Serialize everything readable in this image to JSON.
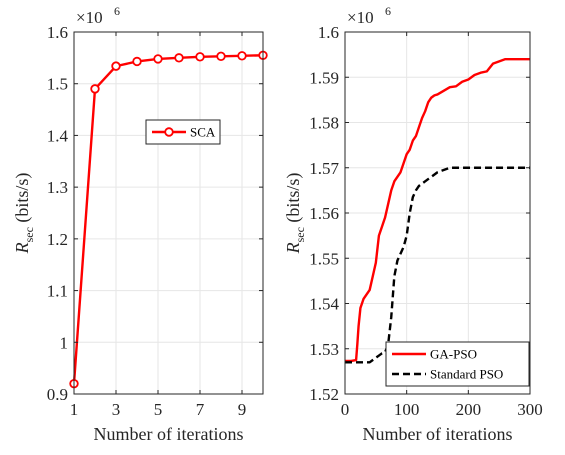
{
  "chart_data": [
    {
      "type": "line",
      "xlabel": "Number of iterations",
      "ylabel": "bits/s",
      "ylabel_symbol": "R",
      "ylabel_subscript": "sec",
      "ylabel_unit": "(bits/s)",
      "multiplier": "×10",
      "multiplier_exp": "6",
      "xlim": [
        1,
        10
      ],
      "ylim": [
        0.9,
        1.6
      ],
      "xticks": [
        1,
        3,
        5,
        7,
        9
      ],
      "yticks": [
        0.9,
        1,
        1.1,
        1.2,
        1.3,
        1.4,
        1.5,
        1.6
      ],
      "ytick_labels": [
        "0.9",
        "1",
        "1.1",
        "1.2",
        "1.3",
        "1.4",
        "1.5",
        "1.6"
      ],
      "grid": true,
      "legend_position": "center-right",
      "series": [
        {
          "name": "SCA",
          "color": "#ff0000",
          "marker": "circle",
          "x": [
            1,
            2,
            3,
            4,
            5,
            6,
            7,
            8,
            9,
            10
          ],
          "y": [
            0.92,
            1.49,
            1.534,
            1.543,
            1.548,
            1.55,
            1.552,
            1.553,
            1.554,
            1.555
          ]
        }
      ]
    },
    {
      "type": "line",
      "xlabel": "Number of iterations",
      "ylabel": "bits/s",
      "ylabel_symbol": "R",
      "ylabel_subscript": "sec",
      "ylabel_unit": "(bits/s)",
      "multiplier": "×10",
      "multiplier_exp": "6",
      "xlim": [
        0,
        300
      ],
      "ylim": [
        1.52,
        1.6
      ],
      "xticks": [
        0,
        100,
        200,
        300
      ],
      "yticks": [
        1.52,
        1.53,
        1.54,
        1.55,
        1.56,
        1.57,
        1.58,
        1.59,
        1.6
      ],
      "ytick_labels": [
        "1.52",
        "1.53",
        "1.54",
        "1.55",
        "1.56",
        "1.57",
        "1.58",
        "1.59",
        "1.6"
      ],
      "grid": true,
      "legend_position": "bottom-right",
      "series": [
        {
          "name": "GA-PSO",
          "color": "#ff0000",
          "style": "solid",
          "x": [
            0,
            10,
            18,
            20,
            22,
            25,
            30,
            35,
            40,
            45,
            50,
            55,
            60,
            65,
            70,
            75,
            80,
            85,
            90,
            95,
            100,
            105,
            110,
            115,
            120,
            125,
            130,
            135,
            140,
            145,
            150,
            160,
            170,
            180,
            190,
            200,
            210,
            220,
            230,
            240,
            250,
            260,
            270,
            280,
            290,
            300
          ],
          "y": [
            1.5273,
            1.5273,
            1.5275,
            1.531,
            1.535,
            1.539,
            1.541,
            1.542,
            1.543,
            1.546,
            1.549,
            1.555,
            1.557,
            1.559,
            1.562,
            1.565,
            1.567,
            1.568,
            1.569,
            1.571,
            1.573,
            1.574,
            1.576,
            1.577,
            1.579,
            1.581,
            1.5825,
            1.5845,
            1.5855,
            1.586,
            1.5862,
            1.587,
            1.5878,
            1.588,
            1.589,
            1.5895,
            1.5905,
            1.591,
            1.5913,
            1.593,
            1.5935,
            1.594,
            1.594,
            1.594,
            1.594,
            1.594
          ]
        },
        {
          "name": "Standard PSO",
          "color": "#000000",
          "style": "dashed",
          "x": [
            0,
            10,
            20,
            30,
            40,
            50,
            55,
            60,
            65,
            70,
            75,
            80,
            85,
            90,
            95,
            100,
            105,
            110,
            115,
            120,
            130,
            140,
            150,
            160,
            170,
            180,
            200,
            220,
            250,
            300
          ],
          "y": [
            1.527,
            1.527,
            1.527,
            1.527,
            1.527,
            1.528,
            1.5285,
            1.529,
            1.5292,
            1.531,
            1.537,
            1.546,
            1.5495,
            1.551,
            1.5525,
            1.555,
            1.56,
            1.5635,
            1.565,
            1.566,
            1.567,
            1.568,
            1.569,
            1.5695,
            1.57,
            1.57,
            1.57,
            1.57,
            1.57,
            1.57
          ]
        }
      ]
    }
  ]
}
